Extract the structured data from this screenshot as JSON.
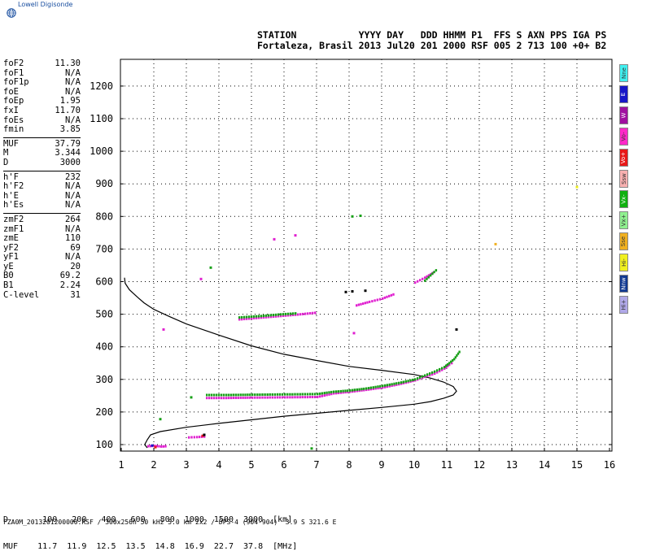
{
  "brand": "Lowell Digisonde",
  "header": {
    "line1": "STATION           YYYY DAY   DDD HHMM P1  FFS S AXN PPS IGA PS",
    "line2": "Fortaleza, Brasil 2013 Jul20 201 2000 RSF 005 2 713 100 +0+ B2"
  },
  "params": [
    {
      "group": [
        {
          "label": "foF2",
          "value": "11.30"
        },
        {
          "label": "foF1",
          "value": "N/A"
        },
        {
          "label": "foF1p",
          "value": "N/A"
        },
        {
          "label": "foE",
          "value": "N/A"
        },
        {
          "label": "foEp",
          "value": "1.95"
        },
        {
          "label": "fxI",
          "value": "11.70"
        },
        {
          "label": "foEs",
          "value": "N/A"
        },
        {
          "label": "fmin",
          "value": "3.85"
        }
      ]
    },
    {
      "group": [
        {
          "label": "MUF",
          "value": "37.79"
        },
        {
          "label": "M",
          "value": "3.344"
        },
        {
          "label": "D",
          "value": "3000"
        }
      ]
    },
    {
      "group": [
        {
          "label": "h'F",
          "value": "232"
        },
        {
          "label": "h'F2",
          "value": "N/A"
        },
        {
          "label": "h'E",
          "value": "N/A"
        },
        {
          "label": "h'Es",
          "value": "N/A"
        }
      ]
    },
    {
      "group": [
        {
          "label": "zmF2",
          "value": "264"
        },
        {
          "label": "zmF1",
          "value": "N/A"
        },
        {
          "label": "zmE",
          "value": "110"
        },
        {
          "label": "yF2",
          "value": "69"
        },
        {
          "label": "yF1",
          "value": "N/A"
        },
        {
          "label": "yE",
          "value": "20"
        },
        {
          "label": "B0",
          "value": "69.2"
        },
        {
          "label": "B1",
          "value": "2.24"
        },
        {
          "label": "C-level",
          "value": "31"
        }
      ]
    }
  ],
  "modes": [
    {
      "label": "Nne",
      "color": "#40f0f0"
    },
    {
      "label": "E",
      "color": "#1818c8"
    },
    {
      "label": "W",
      "color": "#a010a0"
    },
    {
      "label": "Vo-",
      "color": "#ff28c8"
    },
    {
      "label": "Vo+",
      "color": "#e81818"
    },
    {
      "label": "Ssw",
      "color": "#f8b0b0"
    },
    {
      "label": "Vx-",
      "color": "#10b010"
    },
    {
      "label": "Vx+",
      "color": "#90f090"
    },
    {
      "label": "Sse",
      "color": "#f0b020"
    },
    {
      "label": "Hi-",
      "color": "#f0f020"
    },
    {
      "label": "Nnw",
      "color": "#103890"
    },
    {
      "label": "Hi+",
      "color": "#b0a8e8"
    }
  ],
  "muf_table": {
    "d_label": "D",
    "d_values": [
      "100",
      "200",
      "400",
      "600",
      "800",
      "1000",
      "1500",
      "3000"
    ],
    "d_unit": "[km]",
    "muf_label": "MUF",
    "muf_values": [
      "11.7",
      "11.9",
      "12.5",
      "13.5",
      "14.8",
      "16.9",
      "22.7",
      "37.8"
    ],
    "muf_unit": "[MHz]"
  },
  "footer": "FZA0M_2013201200000.RSF / 300x256h 50 kHz 5.0 km 2x2 / DPS-4 (904-904)  3.9 S 321.6 E",
  "chart_data": {
    "type": "scatter",
    "xlim": [
      1,
      16
    ],
    "ylim": [
      75,
      1280
    ],
    "x_ticks": [
      1,
      2,
      3,
      4,
      5,
      6,
      7,
      8,
      9,
      10,
      11,
      12,
      13,
      14,
      15,
      16
    ],
    "y_ticks": [
      100,
      200,
      300,
      400,
      500,
      600,
      700,
      800,
      900,
      1000,
      1100,
      1200
    ],
    "grid": true,
    "profile": {
      "name": "electron density profile",
      "color": "#000000",
      "x": [
        1.8,
        1.72,
        1.8,
        1.9,
        2.2,
        3.0,
        4.0,
        5.0,
        6.0,
        7.0,
        8.0,
        9.0,
        10.0,
        10.5,
        10.9,
        11.2,
        11.3,
        11.2,
        10.9,
        10.5,
        10.0,
        9.0,
        8.0,
        7.0,
        6.0,
        5.0,
        4.0,
        3.0,
        2.5,
        2.0,
        1.7,
        1.5,
        1.25,
        1.12,
        1.1
      ],
      "y": [
        90,
        100,
        115,
        130,
        140,
        153,
        165,
        176,
        187,
        196,
        205,
        214,
        224,
        232,
        242,
        252,
        264,
        278,
        292,
        304,
        315,
        328,
        340,
        358,
        377,
        403,
        436,
        470,
        492,
        515,
        535,
        552,
        575,
        595,
        612
      ]
    },
    "traces": [
      {
        "name": "O F2 main",
        "color": "#e020d0",
        "x": [
          3.6,
          4.2,
          5.0,
          6.0,
          7.0,
          7.5,
          8.0,
          8.5,
          9.0,
          9.5,
          10.0,
          10.3,
          10.6,
          10.9,
          11.05,
          11.2
        ],
        "y": [
          243,
          243,
          244,
          245,
          246,
          257,
          262,
          268,
          275,
          285,
          297,
          308,
          318,
          333,
          345,
          355
        ]
      },
      {
        "name": "X F2 main",
        "color": "#18a018",
        "x": [
          3.6,
          4.2,
          5.0,
          6.0,
          7.0,
          7.5,
          8.0,
          8.5,
          9.0,
          9.5,
          10.0,
          10.3,
          10.6,
          10.9,
          11.05,
          11.2,
          11.4
        ],
        "y": [
          252,
          252,
          253,
          254,
          255,
          262,
          266,
          272,
          280,
          289,
          300,
          312,
          324,
          338,
          350,
          362,
          390
        ]
      },
      {
        "name": "O 2nd hop",
        "color": "#e020d0",
        "x": [
          4.6,
          5.2,
          5.8,
          6.4,
          7.0
        ],
        "y": [
          484,
          489,
          494,
          499,
          505
        ]
      },
      {
        "name": "X 2nd hop",
        "color": "#18a018",
        "x": [
          4.6,
          5.2,
          5.8,
          6.4
        ],
        "y": [
          490,
          494,
          499,
          503
        ]
      },
      {
        "name": "O 3rd hop",
        "color": "#e020d0",
        "x": [
          8.2,
          8.6,
          9.0,
          9.4
        ],
        "y": [
          527,
          538,
          548,
          563
        ]
      },
      {
        "name": "O 4th hop",
        "color": "#e020d0",
        "x": [
          10.0,
          10.3,
          10.6
        ],
        "y": [
          597,
          612,
          630
        ]
      },
      {
        "name": "X 4th hop",
        "color": "#18a018",
        "x": [
          10.3,
          10.7
        ],
        "y": [
          603,
          640
        ]
      },
      {
        "name": "Es low",
        "color": "#e020d0",
        "x": [
          1.8,
          2.0,
          2.2,
          2.4
        ],
        "y": [
          95,
          96,
          94,
          95
        ]
      },
      {
        "name": "Es low 2",
        "color": "#e020d0",
        "x": [
          3.05,
          3.3,
          3.6
        ],
        "y": [
          122,
          123,
          125
        ]
      }
    ],
    "points": [
      {
        "x": 3.75,
        "y": 643,
        "color": "#18a018"
      },
      {
        "x": 3.45,
        "y": 608,
        "color": "#e020d0"
      },
      {
        "x": 3.15,
        "y": 245,
        "color": "#18a018"
      },
      {
        "x": 2.3,
        "y": 453,
        "color": "#e020d0"
      },
      {
        "x": 2.2,
        "y": 178,
        "color": "#18a018"
      },
      {
        "x": 5.7,
        "y": 730,
        "color": "#e020d0"
      },
      {
        "x": 6.35,
        "y": 742,
        "color": "#e020d0"
      },
      {
        "x": 8.1,
        "y": 800,
        "color": "#18a018"
      },
      {
        "x": 8.35,
        "y": 802,
        "color": "#18a018"
      },
      {
        "x": 8.15,
        "y": 442,
        "color": "#e020d0"
      },
      {
        "x": 11.3,
        "y": 453,
        "color": "#000000"
      },
      {
        "x": 12.5,
        "y": 715,
        "color": "#f0b020"
      },
      {
        "x": 15.0,
        "y": 890,
        "color": "#f0f020"
      },
      {
        "x": 6.85,
        "y": 88,
        "color": "#18a018"
      },
      {
        "x": 2.05,
        "y": 92,
        "color": "#e81818"
      },
      {
        "x": 1.95,
        "y": 97,
        "color": "#1818c8"
      },
      {
        "x": 3.5,
        "y": 127,
        "color": "#e81818"
      },
      {
        "x": 3.55,
        "y": 130,
        "color": "#000000"
      },
      {
        "x": 8.1,
        "y": 570,
        "color": "#000000"
      },
      {
        "x": 8.5,
        "y": 572,
        "color": "#000000"
      },
      {
        "x": 7.9,
        "y": 568,
        "color": "#000000"
      }
    ]
  }
}
